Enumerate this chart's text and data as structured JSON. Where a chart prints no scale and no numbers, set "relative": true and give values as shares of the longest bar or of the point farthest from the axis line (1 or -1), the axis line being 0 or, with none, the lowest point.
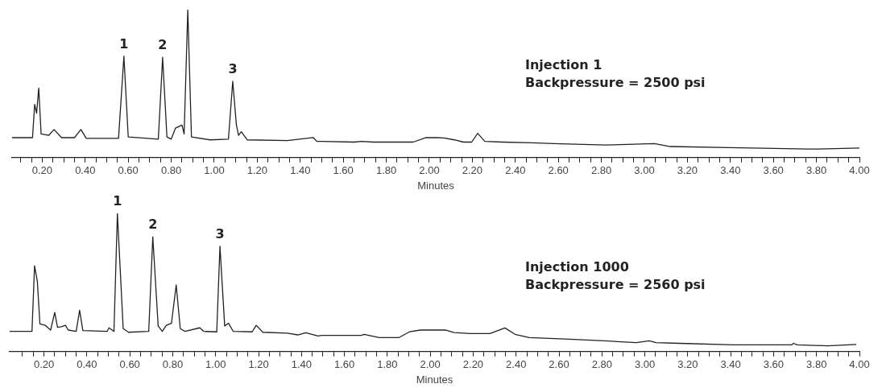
{
  "chart_data": [
    {
      "type": "line",
      "relative": true,
      "xlabel": "Minutes",
      "xlim": [
        0.06,
        4.0
      ],
      "xticks": [
        {
          "value": 0.1,
          "label": null
        },
        {
          "value": 0.15,
          "label": null
        },
        {
          "value": 0.2,
          "label": "0.20"
        },
        {
          "value": 0.25,
          "label": null
        },
        {
          "value": 0.3,
          "label": null
        },
        {
          "value": 0.35,
          "label": null
        },
        {
          "value": 0.4,
          "label": "0.40"
        },
        {
          "value": 0.45,
          "label": null
        },
        {
          "value": 0.5,
          "label": null
        },
        {
          "value": 0.55,
          "label": null
        },
        {
          "value": 0.6,
          "label": "0.60"
        },
        {
          "value": 0.65,
          "label": null
        },
        {
          "value": 0.7,
          "label": null
        },
        {
          "value": 0.75,
          "label": null
        },
        {
          "value": 0.8,
          "label": "0.80"
        },
        {
          "value": 0.85,
          "label": null
        },
        {
          "value": 0.9,
          "label": null
        },
        {
          "value": 0.95,
          "label": null
        },
        {
          "value": 1.0,
          "label": "1.00"
        },
        {
          "value": 1.05,
          "label": null
        },
        {
          "value": 1.1,
          "label": null
        },
        {
          "value": 1.15,
          "label": null
        },
        {
          "value": 1.2,
          "label": "1.20"
        },
        {
          "value": 1.25,
          "label": null
        },
        {
          "value": 1.3,
          "label": null
        },
        {
          "value": 1.35,
          "label": null
        },
        {
          "value": 1.4,
          "label": "1.40"
        },
        {
          "value": 1.45,
          "label": null
        },
        {
          "value": 1.5,
          "label": null
        },
        {
          "value": 1.55,
          "label": null
        },
        {
          "value": 1.6,
          "label": "1.60"
        },
        {
          "value": 1.65,
          "label": null
        },
        {
          "value": 1.7,
          "label": null
        },
        {
          "value": 1.75,
          "label": null
        },
        {
          "value": 1.8,
          "label": "1.80"
        },
        {
          "value": 1.85,
          "label": null
        },
        {
          "value": 1.9,
          "label": null
        },
        {
          "value": 1.95,
          "label": null
        },
        {
          "value": 2.0,
          "label": "2.00"
        },
        {
          "value": 2.05,
          "label": null
        },
        {
          "value": 2.1,
          "label": null
        },
        {
          "value": 2.15,
          "label": null
        },
        {
          "value": 2.2,
          "label": "2.20"
        },
        {
          "value": 2.25,
          "label": null
        },
        {
          "value": 2.3,
          "label": null
        },
        {
          "value": 2.35,
          "label": null
        },
        {
          "value": 2.4,
          "label": "2.40"
        },
        {
          "value": 2.45,
          "label": null
        },
        {
          "value": 2.5,
          "label": null
        },
        {
          "value": 2.55,
          "label": null
        },
        {
          "value": 2.6,
          "label": "2.60"
        },
        {
          "value": 2.65,
          "label": null
        },
        {
          "value": 2.7,
          "label": null
        },
        {
          "value": 2.75,
          "label": null
        },
        {
          "value": 2.8,
          "label": "2.80"
        },
        {
          "value": 2.85,
          "label": null
        },
        {
          "value": 2.9,
          "label": null
        },
        {
          "value": 2.95,
          "label": null
        },
        {
          "value": 3.0,
          "label": "3.00"
        },
        {
          "value": 3.05,
          "label": null
        },
        {
          "value": 3.1,
          "label": null
        },
        {
          "value": 3.15,
          "label": null
        },
        {
          "value": 3.2,
          "label": "3.20"
        },
        {
          "value": 3.25,
          "label": null
        },
        {
          "value": 3.3,
          "label": null
        },
        {
          "value": 3.35,
          "label": null
        },
        {
          "value": 3.4,
          "label": "3.40"
        },
        {
          "value": 3.45,
          "label": null
        },
        {
          "value": 3.5,
          "label": null
        },
        {
          "value": 3.55,
          "label": null
        },
        {
          "value": 3.6,
          "label": "3.60"
        },
        {
          "value": 3.65,
          "label": null
        },
        {
          "value": 3.7,
          "label": null
        },
        {
          "value": 3.75,
          "label": null
        },
        {
          "value": 3.8,
          "label": "3.80"
        },
        {
          "value": 3.85,
          "label": null
        },
        {
          "value": 3.9,
          "label": null
        },
        {
          "value": 3.95,
          "label": null
        },
        {
          "value": 4.0,
          "label": "4.00"
        }
      ],
      "tick_labels": "x",
      "legend": false,
      "x": [
        0.06,
        0.155,
        0.165,
        0.174,
        0.184,
        0.195,
        0.23,
        0.255,
        0.29,
        0.35,
        0.38,
        0.405,
        0.555,
        0.58,
        0.6,
        0.74,
        0.76,
        0.78,
        0.8,
        0.82,
        0.85,
        0.86,
        0.877,
        0.894,
        0.98,
        1.066,
        1.086,
        1.103,
        1.113,
        1.126,
        1.153,
        1.34,
        1.46,
        1.477,
        1.5,
        1.65,
        1.685,
        1.74,
        1.925,
        1.985,
        2.034,
        2.067,
        2.117,
        2.158,
        2.197,
        2.225,
        2.258,
        2.34,
        2.474,
        2.607,
        2.82,
        3.047,
        3.12,
        3.395,
        3.76,
        3.81,
        4.0
      ],
      "series": [
        {
          "color": "#222222",
          "values": [
            0.135,
            0.135,
            0.36,
            0.3,
            0.47,
            0.16,
            0.15,
            0.19,
            0.135,
            0.135,
            0.19,
            0.13,
            0.13,
            0.686,
            0.14,
            0.125,
            0.678,
            0.14,
            0.125,
            0.2,
            0.22,
            0.16,
            1.0,
            0.14,
            0.12,
            0.125,
            0.516,
            0.22,
            0.15,
            0.175,
            0.12,
            0.115,
            0.136,
            0.11,
            0.11,
            0.105,
            0.11,
            0.105,
            0.105,
            0.135,
            0.135,
            0.133,
            0.12,
            0.105,
            0.105,
            0.164,
            0.11,
            0.105,
            0.1,
            0.093,
            0.085,
            0.095,
            0.075,
            0.068,
            0.058,
            0.058,
            0.065
          ]
        }
      ],
      "annotations": [
        {
          "text": "1",
          "x": 0.58,
          "y": 0.686
        },
        {
          "text": "2",
          "x": 0.76,
          "y": 0.678
        },
        {
          "text": "3",
          "x": 1.086,
          "y": 0.516
        },
        "Injection 1",
        "Backpressure = 2500 psi"
      ]
    },
    {
      "type": "line",
      "relative": true,
      "xlabel": "Minutes",
      "xlim": [
        0.04,
        4.0
      ],
      "xticks": [
        {
          "value": 0.1,
          "label": null
        },
        {
          "value": 0.15,
          "label": null
        },
        {
          "value": 0.2,
          "label": "0.20"
        },
        {
          "value": 0.25,
          "label": null
        },
        {
          "value": 0.3,
          "label": null
        },
        {
          "value": 0.35,
          "label": null
        },
        {
          "value": 0.4,
          "label": "0.40"
        },
        {
          "value": 0.45,
          "label": null
        },
        {
          "value": 0.5,
          "label": null
        },
        {
          "value": 0.55,
          "label": null
        },
        {
          "value": 0.6,
          "label": "0.60"
        },
        {
          "value": 0.65,
          "label": null
        },
        {
          "value": 0.7,
          "label": null
        },
        {
          "value": 0.75,
          "label": null
        },
        {
          "value": 0.8,
          "label": "0.80"
        },
        {
          "value": 0.85,
          "label": null
        },
        {
          "value": 0.9,
          "label": null
        },
        {
          "value": 0.95,
          "label": null
        },
        {
          "value": 1.0,
          "label": "1.00"
        },
        {
          "value": 1.05,
          "label": null
        },
        {
          "value": 1.1,
          "label": null
        },
        {
          "value": 1.15,
          "label": null
        },
        {
          "value": 1.2,
          "label": "1.20"
        },
        {
          "value": 1.25,
          "label": null
        },
        {
          "value": 1.3,
          "label": null
        },
        {
          "value": 1.35,
          "label": null
        },
        {
          "value": 1.4,
          "label": "1.40"
        },
        {
          "value": 1.45,
          "label": null
        },
        {
          "value": 1.5,
          "label": null
        },
        {
          "value": 1.55,
          "label": null
        },
        {
          "value": 1.6,
          "label": "1.60"
        },
        {
          "value": 1.65,
          "label": null
        },
        {
          "value": 1.7,
          "label": null
        },
        {
          "value": 1.75,
          "label": null
        },
        {
          "value": 1.8,
          "label": "1.80"
        },
        {
          "value": 1.85,
          "label": null
        },
        {
          "value": 1.9,
          "label": null
        },
        {
          "value": 1.95,
          "label": null
        },
        {
          "value": 2.0,
          "label": "2.00"
        },
        {
          "value": 2.05,
          "label": null
        },
        {
          "value": 2.1,
          "label": null
        },
        {
          "value": 2.15,
          "label": null
        },
        {
          "value": 2.2,
          "label": "2.20"
        },
        {
          "value": 2.25,
          "label": null
        },
        {
          "value": 2.3,
          "label": null
        },
        {
          "value": 2.35,
          "label": null
        },
        {
          "value": 2.4,
          "label": "2.40"
        },
        {
          "value": 2.45,
          "label": null
        },
        {
          "value": 2.5,
          "label": null
        },
        {
          "value": 2.55,
          "label": null
        },
        {
          "value": 2.6,
          "label": "2.60"
        },
        {
          "value": 2.65,
          "label": null
        },
        {
          "value": 2.7,
          "label": null
        },
        {
          "value": 2.75,
          "label": null
        },
        {
          "value": 2.8,
          "label": "2.80"
        },
        {
          "value": 2.85,
          "label": null
        },
        {
          "value": 2.9,
          "label": null
        },
        {
          "value": 2.95,
          "label": null
        },
        {
          "value": 3.0,
          "label": "3.00"
        },
        {
          "value": 3.05,
          "label": null
        },
        {
          "value": 3.1,
          "label": null
        },
        {
          "value": 3.15,
          "label": null
        },
        {
          "value": 3.2,
          "label": "3.20"
        },
        {
          "value": 3.25,
          "label": null
        },
        {
          "value": 3.3,
          "label": null
        },
        {
          "value": 3.35,
          "label": null
        },
        {
          "value": 3.4,
          "label": "3.40"
        },
        {
          "value": 3.45,
          "label": null
        },
        {
          "value": 3.5,
          "label": null
        },
        {
          "value": 3.55,
          "label": null
        },
        {
          "value": 3.6,
          "label": "3.60"
        },
        {
          "value": 3.65,
          "label": null
        },
        {
          "value": 3.7,
          "label": null
        },
        {
          "value": 3.75,
          "label": null
        },
        {
          "value": 3.8,
          "label": "3.80"
        },
        {
          "value": 3.85,
          "label": null
        },
        {
          "value": 3.9,
          "label": null
        },
        {
          "value": 3.95,
          "label": null
        },
        {
          "value": 4.0,
          "label": "4.00"
        }
      ],
      "tick_labels": "x",
      "legend": false,
      "x": [
        0.04,
        0.144,
        0.156,
        0.169,
        0.181,
        0.206,
        0.231,
        0.25,
        0.263,
        0.281,
        0.3,
        0.313,
        0.35,
        0.366,
        0.381,
        0.494,
        0.503,
        0.526,
        0.542,
        0.569,
        0.594,
        0.688,
        0.707,
        0.732,
        0.751,
        0.77,
        0.794,
        0.816,
        0.835,
        0.857,
        0.926,
        0.945,
        1.005,
        1.02,
        1.042,
        1.06,
        1.082,
        1.17,
        1.189,
        1.22,
        1.333,
        1.383,
        1.42,
        1.477,
        1.495,
        1.679,
        1.692,
        1.762,
        1.853,
        1.903,
        1.954,
        2.07,
        2.111,
        2.187,
        2.278,
        2.348,
        2.395,
        2.461,
        2.628,
        2.811,
        2.96,
        3.02,
        3.052,
        3.16,
        3.41,
        3.685,
        3.692,
        3.71,
        3.852,
        3.985
      ],
      "series": [
        {
          "color": "#222222",
          "values": [
            0.146,
            0.146,
            0.621,
            0.508,
            0.2,
            0.19,
            0.156,
            0.283,
            0.176,
            0.18,
            0.19,
            0.156,
            0.146,
            0.299,
            0.152,
            0.146,
            0.172,
            0.146,
            1.0,
            0.166,
            0.14,
            0.146,
            0.83,
            0.186,
            0.146,
            0.19,
            0.205,
            0.482,
            0.166,
            0.146,
            0.172,
            0.146,
            0.143,
            0.762,
            0.186,
            0.205,
            0.146,
            0.143,
            0.19,
            0.14,
            0.133,
            0.121,
            0.137,
            0.113,
            0.117,
            0.117,
            0.125,
            0.101,
            0.101,
            0.143,
            0.156,
            0.156,
            0.138,
            0.13,
            0.13,
            0.171,
            0.125,
            0.101,
            0.091,
            0.078,
            0.065,
            0.078,
            0.065,
            0.06,
            0.049,
            0.049,
            0.06,
            0.049,
            0.042,
            0.052
          ]
        }
      ],
      "annotations": [
        {
          "text": "1",
          "x": 0.542,
          "y": 1.0
        },
        {
          "text": "2",
          "x": 0.707,
          "y": 0.83
        },
        {
          "text": "3",
          "x": 1.02,
          "y": 0.762
        },
        "Injection 1000",
        "Backpressure = 2560 psi"
      ]
    }
  ]
}
